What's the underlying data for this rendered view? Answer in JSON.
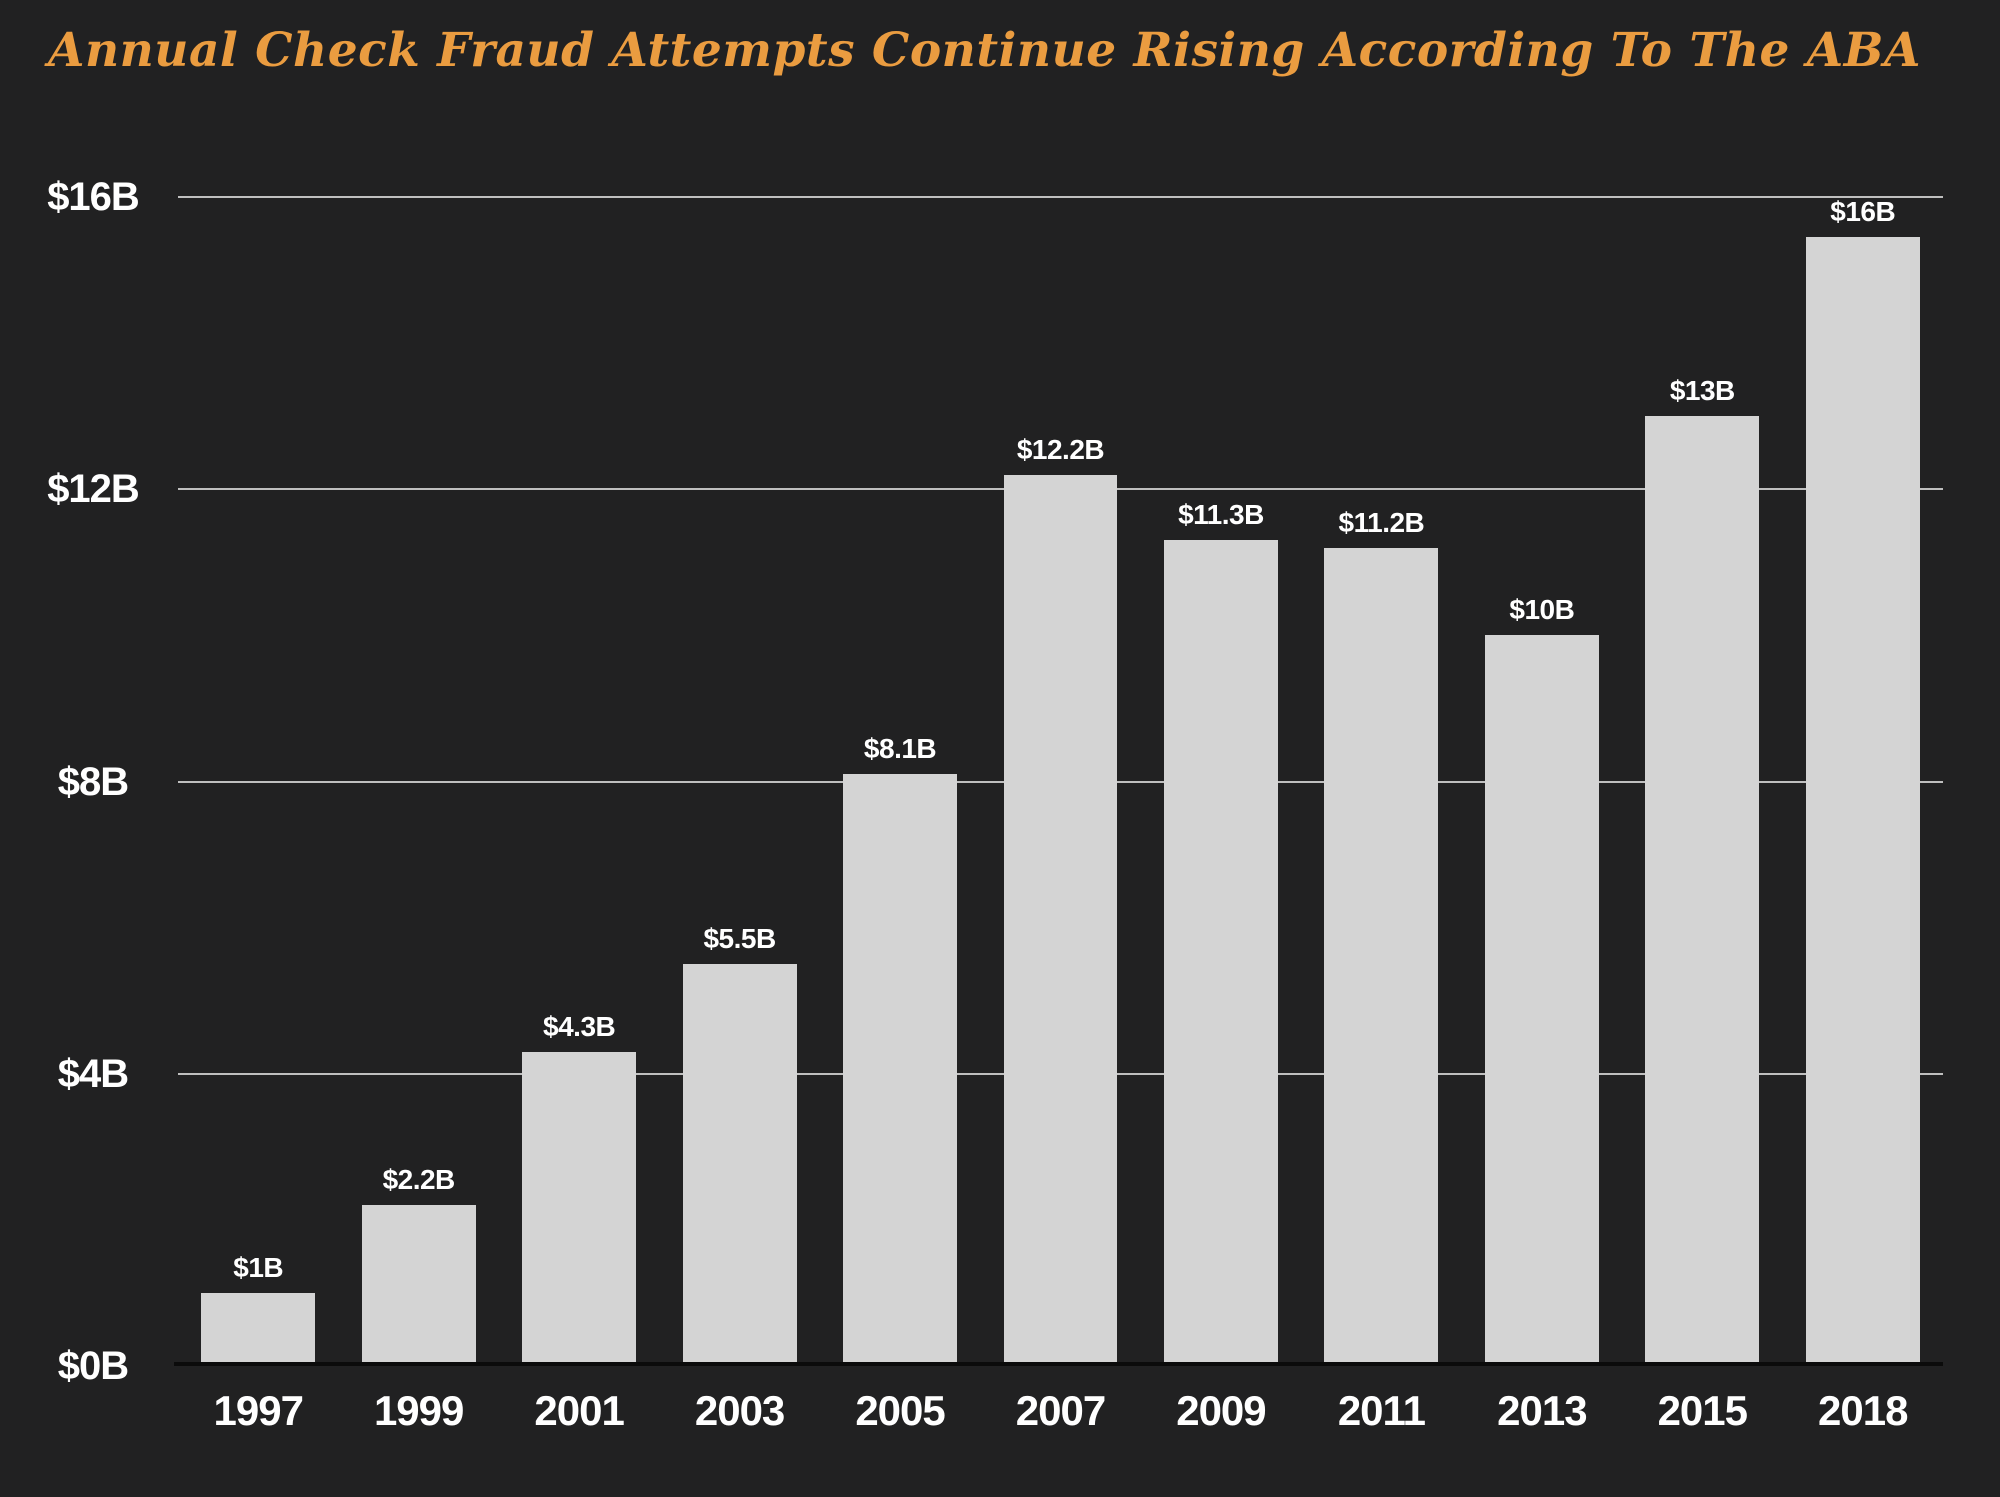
{
  "title": "Annual Check Fraud Attempts Continue Rising According To The ABA",
  "colors": {
    "background": "#212122",
    "bar": "#d4d4d4",
    "title_text": "#ea9c40",
    "gridline": "#bfbfbf",
    "axis_line": "#0b0b0b",
    "label_text": "#ffffff"
  },
  "chart_data": {
    "type": "bar",
    "title": "Annual Check Fraud Attempts Continue Rising According To The ABA",
    "categories": [
      "1997",
      "1999",
      "2001",
      "2003",
      "2005",
      "2007",
      "2009",
      "2011",
      "2013",
      "2015",
      "2018"
    ],
    "values": [
      1,
      2.2,
      4.3,
      5.5,
      8.1,
      12.2,
      11.3,
      11.2,
      10,
      13,
      16
    ],
    "bar_labels": [
      "$1B",
      "$2.2B",
      "$4.3B",
      "$5.5B",
      "$8.1B",
      "$12.2B",
      "$11.3B",
      "$11.2B",
      "$10B",
      "$13B",
      "$16B"
    ],
    "xlabel": "",
    "ylabel": "",
    "ylim": [
      0,
      16
    ],
    "yticks": [
      {
        "value": 0,
        "label": "$0B"
      },
      {
        "value": 4,
        "label": "$4B"
      },
      {
        "value": 8,
        "label": "$8B"
      },
      {
        "value": 12,
        "label": "$12B"
      },
      {
        "value": 16,
        "label": "$16B"
      }
    ],
    "grid": "horizontal",
    "legend": "none"
  }
}
